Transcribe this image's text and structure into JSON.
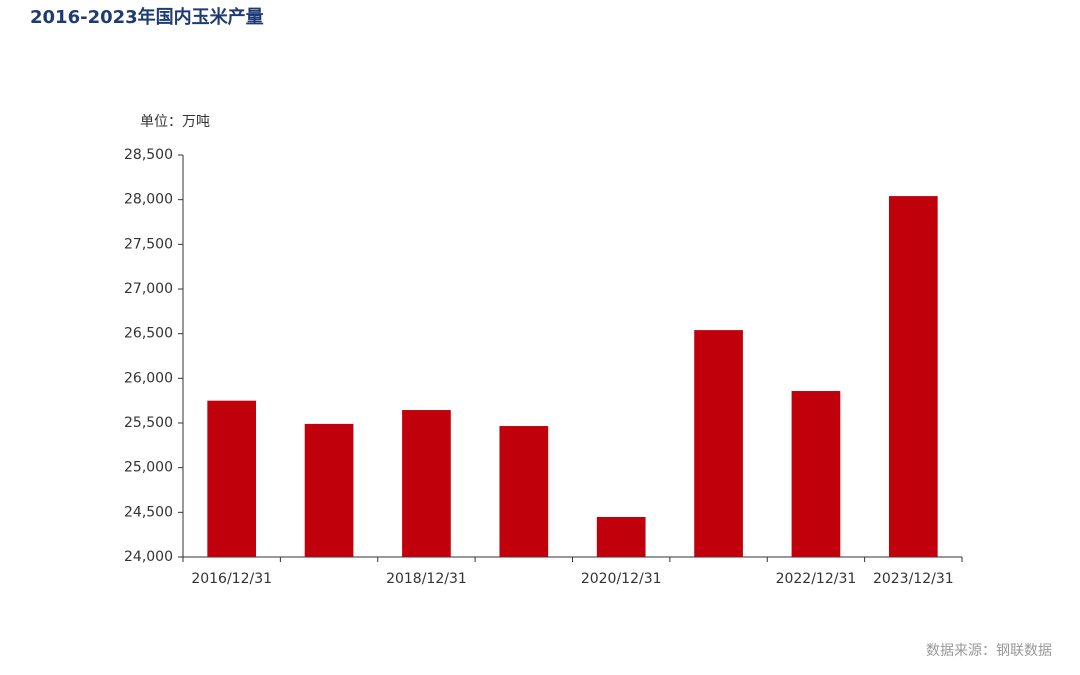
{
  "chart_data": {
    "type": "bar",
    "title": "2016-2023年国内玉米产量",
    "unit_label": "单位：万吨",
    "source": "数据来源：钢联数据",
    "categories": [
      "2016/12/31",
      null,
      "2018/12/31",
      null,
      "2020/12/31",
      null,
      "2022/12/31",
      "2023/12/31"
    ],
    "values": [
      25750,
      25490,
      25645,
      25466,
      24448,
      26540,
      25858,
      28040
    ],
    "color": "#c0000b",
    "ylim": [
      24000,
      28500
    ],
    "yticks": [
      {
        "value": 24000,
        "label": "24,000"
      },
      {
        "value": 24500,
        "label": "24,500"
      },
      {
        "value": 25000,
        "label": "25,000"
      },
      {
        "value": 25500,
        "label": "25,500"
      },
      {
        "value": 26000,
        "label": "26,000"
      },
      {
        "value": 26500,
        "label": "26,500"
      },
      {
        "value": 27000,
        "label": "27,000"
      },
      {
        "value": 27500,
        "label": "27,500"
      },
      {
        "value": 28000,
        "label": "28,000"
      },
      {
        "value": 28500,
        "label": "28,500"
      }
    ],
    "grid": false
  }
}
